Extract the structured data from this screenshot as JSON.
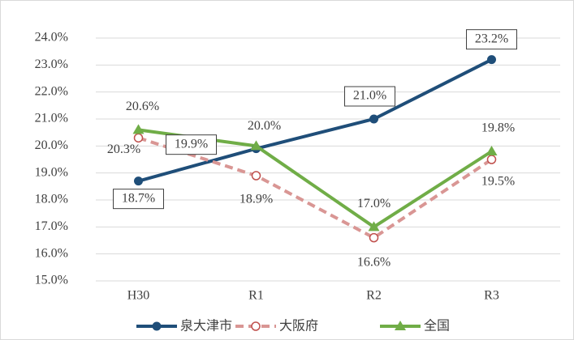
{
  "chart_data": {
    "type": "line",
    "categories": [
      "H30",
      "R1",
      "R2",
      "R3"
    ],
    "series": [
      {
        "name": "泉大津市",
        "color": "#1f4e79",
        "values": [
          18.7,
          19.9,
          21.0,
          23.2
        ],
        "value_labels": [
          "18.7%",
          "19.9%",
          "21.0%",
          "23.2%"
        ],
        "marker": "circle",
        "dash": false,
        "boxed_labels": true
      },
      {
        "name": "大阪府",
        "color": "#d99694",
        "values": [
          20.3,
          18.9,
          16.6,
          19.5
        ],
        "value_labels": [
          "20.3%",
          "18.9%",
          "16.6%",
          "19.5%"
        ],
        "marker": "open-circle",
        "dash": true,
        "boxed_labels": false
      },
      {
        "name": "全国",
        "color": "#70ad47",
        "values": [
          20.6,
          20.0,
          17.0,
          19.8
        ],
        "value_labels": [
          "20.6%",
          "20.0%",
          "17.0%",
          "19.8%"
        ],
        "marker": "triangle",
        "dash": false,
        "boxed_labels": false
      }
    ],
    "ylim": [
      15,
      24
    ],
    "yticks": [
      {
        "value": 15,
        "label": "15.0%"
      },
      {
        "value": 16,
        "label": "16.0%"
      },
      {
        "value": 17,
        "label": "17.0%"
      },
      {
        "value": 18,
        "label": "18.0%"
      },
      {
        "value": 19,
        "label": "19.0%"
      },
      {
        "value": 20,
        "label": "20.0%"
      },
      {
        "value": 21,
        "label": "21.0%"
      },
      {
        "value": 22,
        "label": "22.0%"
      },
      {
        "value": 23,
        "label": "23.0%"
      },
      {
        "value": 24,
        "label": "24.0%"
      }
    ],
    "grid": true,
    "legend": "bottom"
  }
}
